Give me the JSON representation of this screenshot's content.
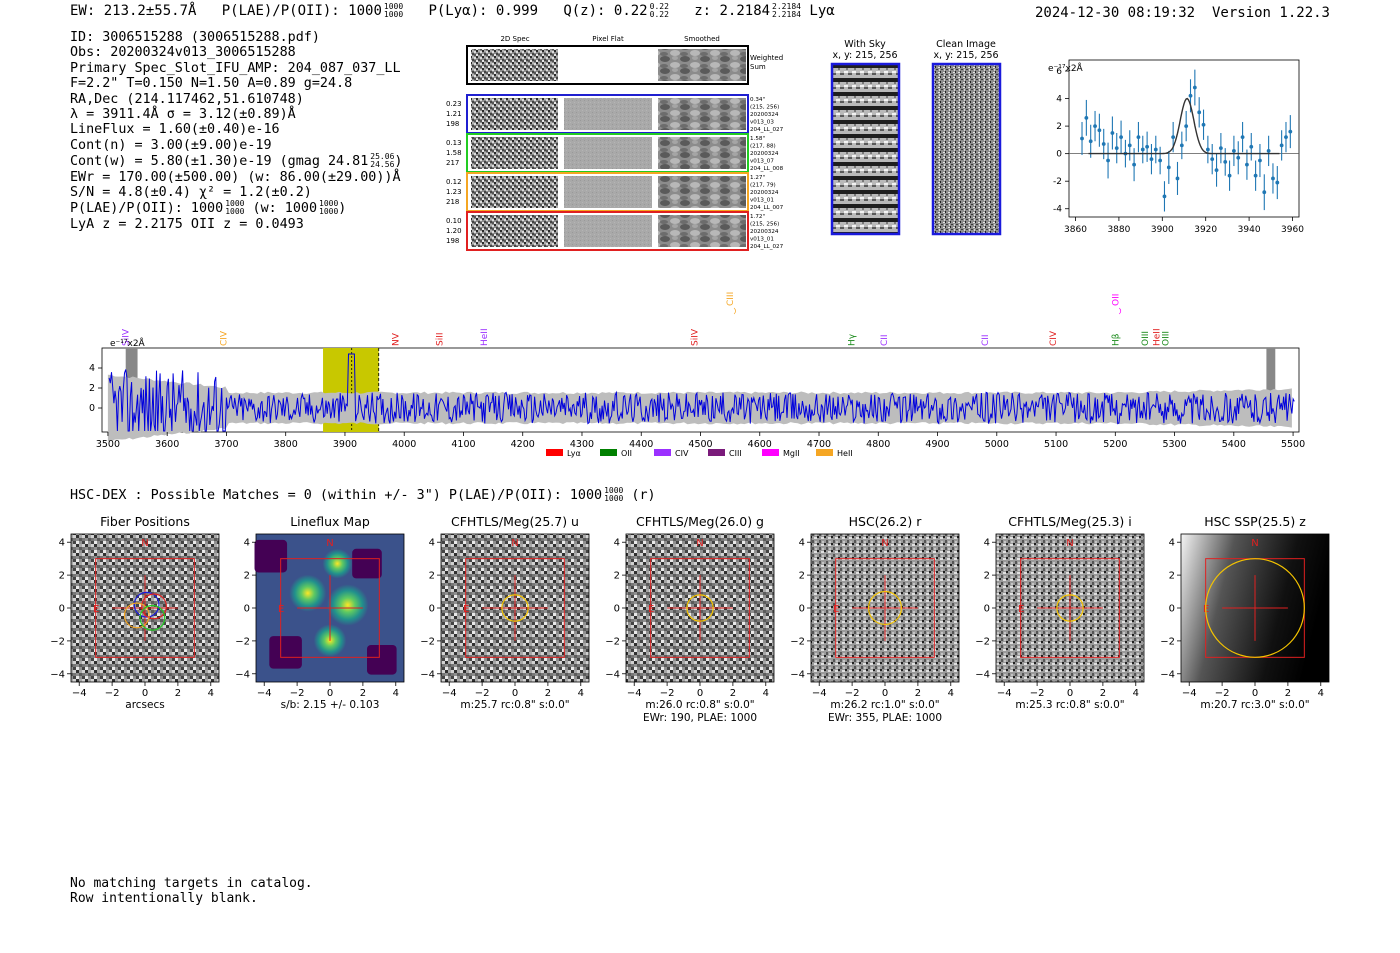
{
  "header": {
    "ew": "EW: 213.2±55.7Å",
    "plae_label": "P(LAE)/P(OII): 1000",
    "plae_num": "1000",
    "plae_den": "1000",
    "plya": "P(Lyα): 0.999",
    "qz": "Q(z): 0.22",
    "qz_num": "0.22",
    "qz_den": "0.22",
    "z": "z: 2.2184",
    "z_num": "2.2184",
    "z_den": "2.2184",
    "z_line": "Lyα",
    "timestamp": "2024-12-30 08:19:32",
    "version": "Version 1.22.3"
  },
  "info": {
    "id": "ID: 3006515288 (3006515288.pdf)",
    "obs": "Obs: 20200324v013_3006515288",
    "slot": "Primary Spec_Slot_IFU_AMP: 204_087_037_LL",
    "fit": "F=2.2\"  T=0.150  N=1.50  A=0.89  g=24.8",
    "radec": "RA,Dec (214.117462,51.610748)",
    "lambda": "λ = 3911.4Å  σ = 3.12(±0.89)Å",
    "lineflux": "LineFlux = 1.60(±0.40)e-16",
    "contn": "Cont(n) = 3.00(±9.00)e-19",
    "contw": "Cont(w) = 5.80(±1.30)e-19 (gmag 24.81",
    "gmag_num": "25.06",
    "gmag_den": "24.56",
    "contw_end": ")",
    "ewr": "EWr = 170.00(±500.00) (w: 86.00(±29.00))Å",
    "sn": "S/N = 4.8(±0.4)  χ² = 1.2(±0.2)",
    "plae": "P(LAE)/P(OII): 1000",
    "plae_num": "1000",
    "plae_den": "1000",
    "plae_w": "(w: 1000",
    "plae_w_num": "1000",
    "plae_w_den": "1000",
    "plae_w_end": ")",
    "zline": "LyA z = 2.2175   OII z = 0.0493"
  },
  "spec2d": {
    "col_headers": [
      "2D Spec",
      "Pixel Flat",
      "Smoothed"
    ],
    "weighted_label": [
      "Weighted",
      "Sum"
    ],
    "rows": [
      {
        "color": "#1f1fd0",
        "left": [
          "0.23",
          "1.21",
          "198"
        ],
        "right": [
          "0.34\"",
          "(215, 256)",
          "20200324",
          "v013_03",
          "204_LL_027"
        ]
      },
      {
        "color": "#22cc22",
        "left": [
          "0.13",
          "1.58",
          "217"
        ],
        "right": [
          "1.58\"",
          "(217, 88)",
          "20200324",
          "v013_07",
          "204_LL_008"
        ]
      },
      {
        "color": "#f5a623",
        "left": [
          "0.12",
          "1.23",
          "218"
        ],
        "right": [
          "1.27\"",
          "(217, 79)",
          "20200324",
          "v013_01",
          "204_LL_007"
        ]
      },
      {
        "color": "#e02020",
        "left": [
          "0.10",
          "1.20",
          "198"
        ],
        "right": [
          "1.72\"",
          "(215, 256)",
          "20200324",
          "v013_01",
          "204_LL_027"
        ]
      }
    ]
  },
  "cutouts": [
    {
      "title": "With Sky",
      "sub": "x, y: 215, 256"
    },
    {
      "title": "Clean Image",
      "sub": "x, y: 215, 256"
    }
  ],
  "zoom_unit": "e⁻¹⁷x2Å",
  "full_unit": "e⁻¹⁷x2Å",
  "full_lines": [
    {
      "name": "SiIV",
      "x": 1397,
      "color": "#9b30ff"
    },
    {
      "name": "CIV",
      "x": 1549,
      "color": "#f5a623"
    },
    {
      "name": "NV",
      "x": 1240,
      "color": "#e02020"
    },
    {
      "name": "SiII",
      "x": 1260,
      "color": "#e02020"
    },
    {
      "name": "HeII",
      "x": 1640,
      "color": "#9b30ff"
    },
    {
      "name": "SiIV",
      "x": 1397,
      "color": "#e02020"
    },
    {
      "name": "CIII",
      "x": 1909,
      "color": "#f5a623"
    },
    {
      "name": "Hγ",
      "x": 4340,
      "color": "#1a8a1a"
    },
    {
      "name": "CII",
      "x": 2326,
      "color": "#9b30ff"
    },
    {
      "name": "CII",
      "x": 2326,
      "color": "#9b30ff"
    },
    {
      "name": "CIV",
      "x": 1549,
      "color": "#e02020"
    },
    {
      "name": "Hβ",
      "x": 4861,
      "color": "#1a8a1a"
    },
    {
      "name": "OII",
      "x": 3727,
      "color": "#ff00ff"
    },
    {
      "name": "OIII",
      "x": 5007,
      "color": "#1a8a1a"
    },
    {
      "name": "OIII",
      "x": 4959,
      "color": "#1a8a1a"
    },
    {
      "name": "HeII",
      "x": 1640,
      "color": "#e02020"
    }
  ],
  "legend": [
    {
      "name": "Lyα",
      "color": "#ff0000"
    },
    {
      "name": "OII",
      "color": "#008000"
    },
    {
      "name": "CIV",
      "color": "#9b30ff"
    },
    {
      "name": "CIII",
      "color": "#7a1a7a"
    },
    {
      "name": "MgII",
      "color": "#ff00ff"
    },
    {
      "name": "HeII",
      "color": "#f5a623"
    }
  ],
  "hsc": {
    "title": "HSC-DEX : Possible Matches = 0 (within +/- 3\")  P(LAE)/P(OII): 1000",
    "num": "1000",
    "den": "1000",
    "end": "(r)"
  },
  "stamps": [
    {
      "title": "Fiber Positions",
      "line1": "arcsecs",
      "line2": ""
    },
    {
      "title": "Lineflux Map",
      "line1": "s/b: 2.15 +/- 0.103",
      "line2": ""
    },
    {
      "title": "CFHTLS/Meg(25.7) u",
      "line1": "m:25.7 rc:0.8\"  s:0.0\"",
      "line2": ""
    },
    {
      "title": "CFHTLS/Meg(26.0) g",
      "line1": "m:26.0 rc:0.8\"  s:0.0\"",
      "line2": "EWr: 190, PLAE: 1000"
    },
    {
      "title": "HSC(26.2) r",
      "line1": "m:26.2 rc:1.0\"  s:0.0\"",
      "line2": "EWr: 355, PLAE: 1000"
    },
    {
      "title": "CFHTLS/Meg(25.3) i",
      "line1": "m:25.3 rc:0.8\"  s:0.0\"",
      "line2": ""
    },
    {
      "title": "HSC SSP(25.5) z",
      "line1": "m:20.7 rc:3.0\"  s:0.0\"",
      "line2": ""
    }
  ],
  "compass": {
    "north": "N",
    "east": "E"
  },
  "bottom": {
    "line1": "No matching targets in catalog.",
    "line2": "Row intentionally blank."
  },
  "chart_data": [
    {
      "type": "scatter",
      "title": "",
      "xlabel": "",
      "ylabel": "e⁻¹⁷x2Å",
      "xlim": [
        3857,
        3963
      ],
      "ylim": [
        -4.6,
        6.8
      ],
      "xticks": [
        3860,
        3880,
        3900,
        3920,
        3940,
        3960
      ],
      "yticks": [
        -4,
        -2,
        0,
        2,
        4,
        6
      ],
      "x": [
        3863,
        3865,
        3867,
        3869,
        3871,
        3873,
        3875,
        3877,
        3879,
        3881,
        3883,
        3885,
        3887,
        3889,
        3891,
        3893,
        3895,
        3897,
        3899,
        3901,
        3903,
        3905,
        3907,
        3909,
        3911,
        3913,
        3915,
        3917,
        3919,
        3921,
        3923,
        3925,
        3927,
        3929,
        3931,
        3933,
        3935,
        3937,
        3939,
        3941,
        3943,
        3945,
        3947,
        3949,
        3951,
        3953,
        3955,
        3957,
        3959
      ],
      "y": [
        1.1,
        2.6,
        0.9,
        2.0,
        1.7,
        0.7,
        -0.5,
        1.5,
        0.4,
        1.2,
        0.0,
        0.6,
        -0.8,
        1.2,
        0.3,
        0.5,
        -0.4,
        0.3,
        -0.5,
        -3.1,
        -1.0,
        1.2,
        -1.8,
        0.6,
        2.0,
        4.2,
        4.8,
        3.0,
        2.1,
        0.3,
        -0.4,
        -1.2,
        0.4,
        -0.6,
        -1.6,
        0.2,
        -0.3,
        1.2,
        -0.8,
        0.5,
        -1.6,
        -0.5,
        -2.8,
        0.2,
        -1.8,
        -2.1,
        0.6,
        1.2,
        1.6
      ],
      "yerr": [
        1.2,
        1.3,
        1.2,
        1.1,
        1.2,
        1.1,
        1.3,
        1.2,
        1.1,
        1.2,
        1.0,
        1.1,
        1.2,
        1.1,
        1.0,
        1.1,
        1.1,
        1.0,
        1.0,
        1.1,
        1.2,
        1.1,
        1.2,
        1.0,
        1.1,
        1.2,
        1.3,
        1.1,
        1.1,
        1.0,
        1.1,
        1.2,
        1.1,
        1.0,
        1.1,
        1.1,
        1.2,
        1.1,
        1.1,
        1.0,
        1.1,
        1.2,
        1.3,
        1.1,
        1.1,
        1.2,
        1.1,
        1.1,
        1.2
      ],
      "fit": {
        "center": 3911.4,
        "sigma": 3.12,
        "amplitude": 4.0,
        "baseline": 0.0
      }
    },
    {
      "type": "line",
      "title": "",
      "xlabel": "",
      "ylabel": "e⁻¹⁷x2Å",
      "xlim": [
        3490,
        5510
      ],
      "ylim": [
        -2.4,
        6.0
      ],
      "xticks": [
        3500,
        3600,
        3700,
        3800,
        3900,
        4000,
        4100,
        4200,
        4300,
        4400,
        4500,
        4600,
        4700,
        4800,
        4900,
        5000,
        5100,
        5200,
        5300,
        5400,
        5500
      ],
      "yticks": [
        0,
        2,
        4
      ],
      "highlight_band": [
        3863,
        3957
      ],
      "line_center": 3911.4,
      "masked_regions": [
        [
          3530,
          3550
        ],
        [
          5455,
          5470
        ]
      ]
    }
  ]
}
